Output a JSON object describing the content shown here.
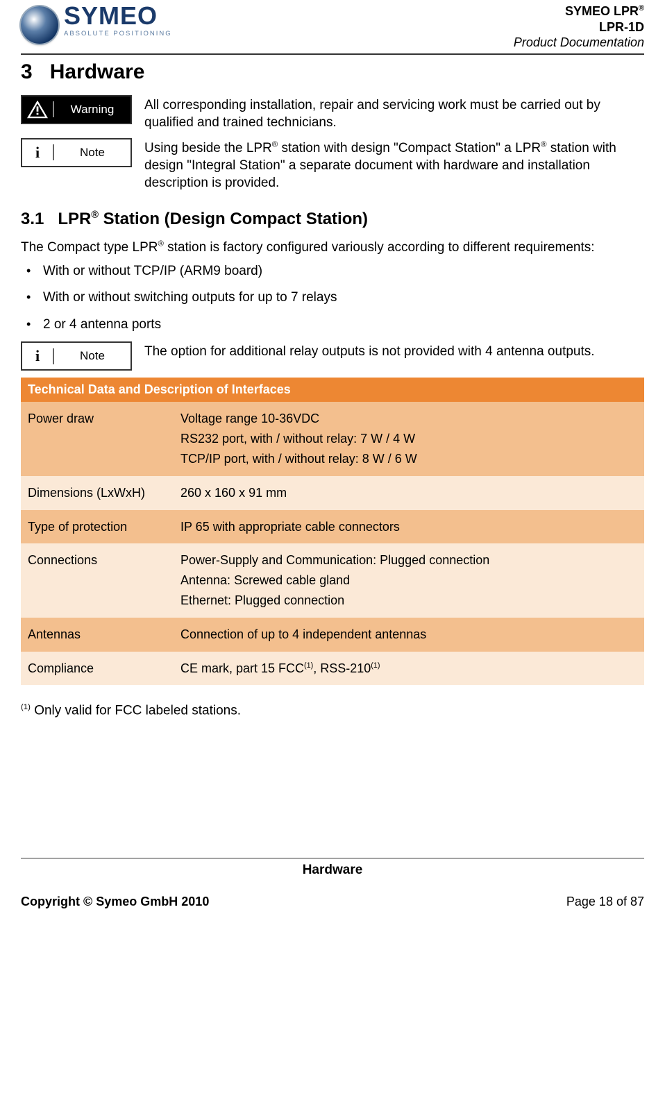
{
  "header": {
    "logo_word": "SYMEO",
    "logo_tagline": "ABSOLUTE POSITIONING",
    "doc_line1_a": "SYMEO LPR",
    "doc_line1_sup": "®",
    "doc_line2": "LPR-1D",
    "doc_line3": "Product Documentation"
  },
  "section": {
    "num": "3",
    "title": "Hardware"
  },
  "callout_warning": {
    "label": "Warning",
    "text": "All corresponding installation, repair and servicing work must be carried out by qualified and trained technicians."
  },
  "callout_note1": {
    "label": "Note",
    "text_a": "Using beside the LPR",
    "text_b": " station with design \"Compact Station\" a LPR",
    "text_c": " station with design \"Integral Station\" a separate document with hardware and installation description is provided."
  },
  "subsection": {
    "num": "3.1",
    "title_a": "LPR",
    "title_b": " Station (Design Compact Station)"
  },
  "intro": {
    "text_a": "The Compact type LPR",
    "text_b": " station is factory configured variously according to different requirements:"
  },
  "bullets": [
    "With  or without TCP/IP (ARM9 board)",
    "With or without switching outputs for up to 7 relays",
    "2 or 4 antenna ports"
  ],
  "callout_note2": {
    "label": "Note",
    "text": "The option for additional relay outputs is not provided with 4 antenna outputs."
  },
  "table": {
    "title": "Technical Data and Description of Interfaces",
    "colors": {
      "header_bg": "#ed8733",
      "header_fg": "#ffffff",
      "row_dark": "#f3bf8e",
      "row_light": "#fbe9d7"
    },
    "rows": [
      {
        "shade": "dark",
        "key": "Power draw",
        "val_lines": [
          "Voltage range 10-36VDC",
          "RS232 port, with / without relay: 7 W / 4 W",
          "TCP/IP port, with / without relay: 8 W / 6 W"
        ]
      },
      {
        "shade": "light",
        "key": "Dimensions (LxWxH)",
        "val_lines": [
          "260 x 160 x 91 mm"
        ]
      },
      {
        "shade": "dark",
        "key": "Type of protection",
        "val_lines": [
          "IP 65 with appropriate cable connectors"
        ]
      },
      {
        "shade": "light",
        "key": "Connections",
        "val_lines": [
          "Power-Supply and Communication: Plugged connection",
          "Antenna: Screwed cable gland",
          "Ethernet: Plugged connection"
        ]
      },
      {
        "shade": "dark",
        "key": "Antennas",
        "val_lines": [
          "Connection of up to 4 independent antennas"
        ]
      },
      {
        "shade": "light",
        "key": "Compliance",
        "val_html": "CE mark, part 15 FCC<sup>(1)</sup>, RSS-210<sup>(1)</sup>"
      }
    ]
  },
  "footnote": {
    "sup": "(1)",
    "text": " Only valid for FCC labeled stations."
  },
  "footer": {
    "section": "Hardware",
    "copyright": "Copyright © Symeo GmbH 2010",
    "page": "Page 18 of 87"
  }
}
